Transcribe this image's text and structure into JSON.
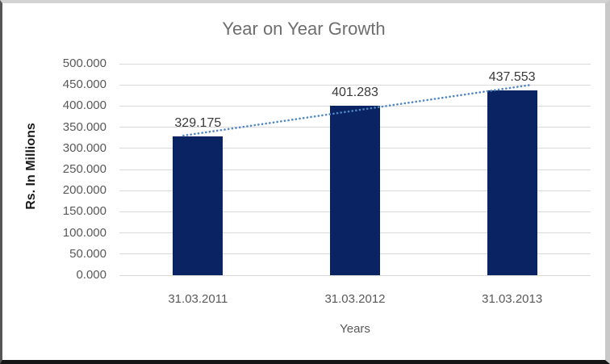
{
  "chart_data": {
    "type": "bar",
    "title": "Year on Year Growth",
    "xlabel": "Years",
    "ylabel": "Rs. In Millions",
    "categories": [
      "31.03.2011",
      "31.03.2012",
      "31.03.2013"
    ],
    "values": [
      329.175,
      401.283,
      437.553
    ],
    "data_labels": [
      "329.175",
      "401.283",
      "437.553"
    ],
    "ytick_labels": [
      "500.000",
      "450.000",
      "400.000",
      "350.000",
      "300.000",
      "250.000",
      "200.000",
      "150.000",
      "100.000",
      "50.000",
      "0.000"
    ],
    "ylim": [
      0,
      500
    ],
    "grid": "horizontal",
    "legend_position": "none",
    "trendline": {
      "type": "linear",
      "style": "dotted"
    },
    "colors": {
      "bar": "#0a2463",
      "trend": "#4f86c6",
      "gridline": "#d9d9d9",
      "tick_text": "#595959",
      "category_text": "#595959",
      "title_text": "#6e6e6e",
      "data_label_text": "#3a3a3a",
      "y_axis_title_text": "#1a1a1a",
      "x_axis_title_text": "#595959"
    }
  }
}
